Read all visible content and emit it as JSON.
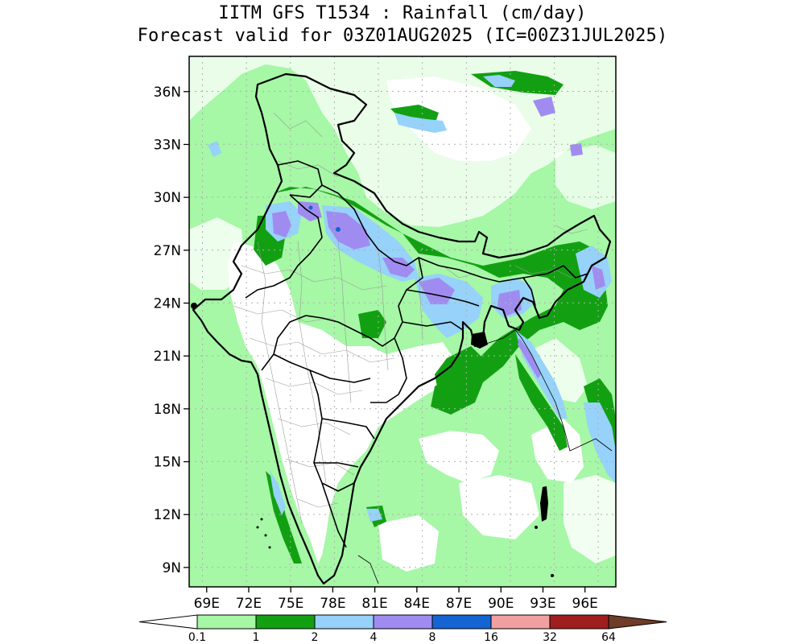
{
  "title_line1": "IITM GFS T1534 : Rainfall (cm/day)",
  "title_line2": "Forecast valid for 03Z01AUG2025 (IC=00Z31JUL2025)",
  "map": {
    "lon_range": [
      67.75,
      98.2
    ],
    "lat_range": [
      7.9,
      38.0
    ],
    "lon_ticks": [
      {
        "value": 69,
        "label": "69E"
      },
      {
        "value": 72,
        "label": "72E"
      },
      {
        "value": 75,
        "label": "75E"
      },
      {
        "value": 78,
        "label": "78E"
      },
      {
        "value": 81,
        "label": "81E"
      },
      {
        "value": 84,
        "label": "84E"
      },
      {
        "value": 87,
        "label": "87E"
      },
      {
        "value": 90,
        "label": "90E"
      },
      {
        "value": 93,
        "label": "93E"
      },
      {
        "value": 96,
        "label": "96E"
      }
    ],
    "lat_ticks": [
      {
        "value": 36,
        "label": "36N"
      },
      {
        "value": 33,
        "label": "33N"
      },
      {
        "value": 30,
        "label": "30N"
      },
      {
        "value": 27,
        "label": "27N"
      },
      {
        "value": 24,
        "label": "24N"
      },
      {
        "value": 21,
        "label": "21N"
      },
      {
        "value": 18,
        "label": "18N"
      },
      {
        "value": 15,
        "label": "15N"
      },
      {
        "value": 12,
        "label": "12N"
      },
      {
        "value": 9,
        "label": "9N"
      }
    ],
    "grid": true
  },
  "colorbar": {
    "levels": [
      "0.1",
      "1",
      "2",
      "4",
      "8",
      "16",
      "32",
      "64"
    ],
    "colors": [
      "#ffffff",
      "#a6f7a6",
      "#12a012",
      "#96d2fa",
      "#a08cf0",
      "#1464d2",
      "#f0a0a0",
      "#a01e1e",
      "#6e3c28"
    ]
  },
  "colors": {
    "light_green": "#a6f7a6",
    "dark_green": "#12a012",
    "light_blue": "#96d2fa",
    "purple": "#a08cf0",
    "blue": "#1464d2",
    "state_boundary": "#000000",
    "district_boundary": "#9a9a9a"
  }
}
